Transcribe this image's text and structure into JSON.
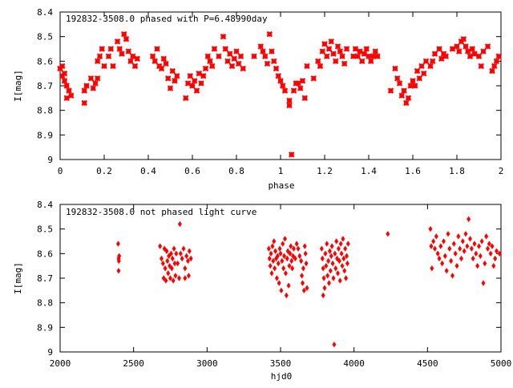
{
  "chart_data": [
    {
      "type": "scatter",
      "title": "192832-3508.0 phased with P=6.48990day",
      "xlabel": "phase",
      "ylabel": "I[mag]",
      "xlim": [
        0,
        2
      ],
      "ylim": [
        9.0,
        8.4
      ],
      "y_axis_inverted": true,
      "grid": false,
      "marker_color": "#ff0000",
      "xticks": [
        "0",
        "0.2",
        "0.4",
        "0.6",
        "0.8",
        "1",
        "1.2",
        "1.4",
        "1.6",
        "1.8",
        "2"
      ],
      "yticks": [
        "8.4",
        "8.5",
        "8.6",
        "8.7",
        "8.8",
        "8.9",
        "9"
      ],
      "points": [
        [
          0.0,
          8.63
        ],
        [
          0.01,
          8.66
        ],
        [
          0.01,
          8.62
        ],
        [
          0.02,
          8.65
        ],
        [
          0.02,
          8.68
        ],
        [
          0.03,
          8.7
        ],
        [
          0.03,
          8.75
        ],
        [
          0.04,
          8.72
        ],
        [
          0.05,
          8.74
        ],
        [
          0.11,
          8.77
        ],
        [
          0.11,
          8.72
        ],
        [
          0.12,
          8.7
        ],
        [
          0.14,
          8.67
        ],
        [
          0.15,
          8.71
        ],
        [
          0.16,
          8.69
        ],
        [
          0.17,
          8.67
        ],
        [
          0.17,
          8.6
        ],
        [
          0.18,
          8.58
        ],
        [
          0.19,
          8.55
        ],
        [
          0.2,
          8.62
        ],
        [
          0.22,
          8.58
        ],
        [
          0.23,
          8.55
        ],
        [
          0.24,
          8.62
        ],
        [
          0.26,
          8.52
        ],
        [
          0.27,
          8.55
        ],
        [
          0.28,
          8.57
        ],
        [
          0.29,
          8.49
        ],
        [
          0.3,
          8.51
        ],
        [
          0.31,
          8.56
        ],
        [
          0.32,
          8.6
        ],
        [
          0.33,
          8.58
        ],
        [
          0.34,
          8.62
        ],
        [
          0.35,
          8.59
        ],
        [
          0.42,
          8.58
        ],
        [
          0.43,
          8.6
        ],
        [
          0.44,
          8.55
        ],
        [
          0.45,
          8.62
        ],
        [
          0.46,
          8.63
        ],
        [
          0.47,
          8.59
        ],
        [
          0.48,
          8.61
        ],
        [
          0.49,
          8.67
        ],
        [
          0.5,
          8.71
        ],
        [
          0.51,
          8.64
        ],
        [
          0.52,
          8.68
        ],
        [
          0.53,
          8.66
        ],
        [
          0.57,
          8.75
        ],
        [
          0.58,
          8.69
        ],
        [
          0.59,
          8.66
        ],
        [
          0.6,
          8.7
        ],
        [
          0.61,
          8.68
        ],
        [
          0.62,
          8.72
        ],
        [
          0.63,
          8.65
        ],
        [
          0.64,
          8.69
        ],
        [
          0.65,
          8.66
        ],
        [
          0.66,
          8.63
        ],
        [
          0.67,
          8.58
        ],
        [
          0.68,
          8.6
        ],
        [
          0.69,
          8.62
        ],
        [
          0.7,
          8.55
        ],
        [
          0.72,
          8.58
        ],
        [
          0.74,
          8.5
        ],
        [
          0.75,
          8.55
        ],
        [
          0.76,
          8.6
        ],
        [
          0.77,
          8.57
        ],
        [
          0.78,
          8.62
        ],
        [
          0.79,
          8.59
        ],
        [
          0.8,
          8.56
        ],
        [
          0.81,
          8.61
        ],
        [
          0.82,
          8.58
        ],
        [
          0.83,
          8.63
        ],
        [
          0.88,
          8.58
        ],
        [
          0.91,
          8.54
        ],
        [
          0.92,
          8.56
        ],
        [
          0.93,
          8.58
        ],
        [
          0.94,
          8.61
        ],
        [
          0.95,
          8.49
        ],
        [
          0.96,
          8.56
        ],
        [
          0.97,
          8.6
        ],
        [
          0.98,
          8.63
        ],
        [
          0.99,
          8.66
        ],
        [
          1.0,
          8.68
        ],
        [
          1.01,
          8.7
        ],
        [
          1.02,
          8.72
        ],
        [
          1.04,
          8.76
        ],
        [
          1.04,
          8.78
        ],
        [
          1.05,
          8.98
        ],
        [
          1.06,
          8.72
        ],
        [
          1.07,
          8.69
        ],
        [
          1.08,
          8.69
        ],
        [
          1.09,
          8.71
        ],
        [
          1.1,
          8.68
        ],
        [
          1.11,
          8.75
        ],
        [
          1.12,
          8.62
        ],
        [
          1.15,
          8.67
        ],
        [
          1.17,
          8.6
        ],
        [
          1.18,
          8.62
        ],
        [
          1.19,
          8.56
        ],
        [
          1.2,
          8.53
        ],
        [
          1.21,
          8.58
        ],
        [
          1.22,
          8.55
        ],
        [
          1.23,
          8.52
        ],
        [
          1.24,
          8.57
        ],
        [
          1.25,
          8.6
        ],
        [
          1.26,
          8.54
        ],
        [
          1.27,
          8.56
        ],
        [
          1.28,
          8.58
        ],
        [
          1.29,
          8.61
        ],
        [
          1.3,
          8.55
        ],
        [
          1.33,
          8.58
        ],
        [
          1.34,
          8.55
        ],
        [
          1.35,
          8.58
        ],
        [
          1.36,
          8.56
        ],
        [
          1.37,
          8.6
        ],
        [
          1.38,
          8.57
        ],
        [
          1.39,
          8.55
        ],
        [
          1.4,
          8.58
        ],
        [
          1.41,
          8.6
        ],
        [
          1.42,
          8.58
        ],
        [
          1.43,
          8.56
        ],
        [
          1.44,
          8.58
        ],
        [
          1.5,
          8.72
        ],
        [
          1.52,
          8.63
        ],
        [
          1.53,
          8.67
        ],
        [
          1.54,
          8.69
        ],
        [
          1.55,
          8.74
        ],
        [
          1.56,
          8.72
        ],
        [
          1.57,
          8.77
        ],
        [
          1.58,
          8.75
        ],
        [
          1.59,
          8.7
        ],
        [
          1.6,
          8.68
        ],
        [
          1.61,
          8.7
        ],
        [
          1.62,
          8.64
        ],
        [
          1.63,
          8.67
        ],
        [
          1.64,
          8.62
        ],
        [
          1.65,
          8.65
        ],
        [
          1.66,
          8.6
        ],
        [
          1.68,
          8.62
        ],
        [
          1.69,
          8.6
        ],
        [
          1.7,
          8.57
        ],
        [
          1.72,
          8.55
        ],
        [
          1.73,
          8.59
        ],
        [
          1.74,
          8.57
        ],
        [
          1.75,
          8.58
        ],
        [
          1.78,
          8.55
        ],
        [
          1.8,
          8.54
        ],
        [
          1.81,
          8.56
        ],
        [
          1.82,
          8.52
        ],
        [
          1.83,
          8.51
        ],
        [
          1.84,
          8.54
        ],
        [
          1.85,
          8.56
        ],
        [
          1.86,
          8.58
        ],
        [
          1.87,
          8.55
        ],
        [
          1.88,
          8.57
        ],
        [
          1.9,
          8.58
        ],
        [
          1.91,
          8.62
        ],
        [
          1.92,
          8.56
        ],
        [
          1.94,
          8.54
        ],
        [
          1.96,
          8.64
        ],
        [
          1.97,
          8.62
        ],
        [
          1.98,
          8.6
        ],
        [
          1.99,
          8.58
        ]
      ]
    },
    {
      "type": "scatter",
      "title": "192832-3508.0 not phased light curve",
      "xlabel": "hjd0",
      "ylabel": "I[mag]",
      "xlim": [
        2000,
        5000
      ],
      "ylim": [
        9.0,
        8.4
      ],
      "y_axis_inverted": true,
      "grid": false,
      "marker_color": "#ff0000",
      "xticks": [
        "2000",
        "2500",
        "3000",
        "3500",
        "4000",
        "4500",
        "5000"
      ],
      "yticks": [
        "8.4",
        "8.5",
        "8.6",
        "8.7",
        "8.8",
        "8.9",
        "9"
      ],
      "points": [
        [
          2395,
          8.56
        ],
        [
          2398,
          8.62
        ],
        [
          2400,
          8.63
        ],
        [
          2402,
          8.61
        ],
        [
          2398,
          8.67
        ],
        [
          2680,
          8.57
        ],
        [
          2690,
          8.62
        ],
        [
          2700,
          8.64
        ],
        [
          2705,
          8.7
        ],
        [
          2710,
          8.58
        ],
        [
          2715,
          8.66
        ],
        [
          2720,
          8.71
        ],
        [
          2725,
          8.59
        ],
        [
          2730,
          8.63
        ],
        [
          2735,
          8.68
        ],
        [
          2740,
          8.61
        ],
        [
          2745,
          8.65
        ],
        [
          2750,
          8.7
        ],
        [
          2755,
          8.6
        ],
        [
          2760,
          8.66
        ],
        [
          2765,
          8.62
        ],
        [
          2770,
          8.71
        ],
        [
          2775,
          8.58
        ],
        [
          2780,
          8.64
        ],
        [
          2785,
          8.69
        ],
        [
          2790,
          8.6
        ],
        [
          2800,
          8.64
        ],
        [
          2810,
          8.7
        ],
        [
          2815,
          8.48
        ],
        [
          2820,
          8.6
        ],
        [
          2830,
          8.62
        ],
        [
          2840,
          8.58
        ],
        [
          2850,
          8.66
        ],
        [
          2860,
          8.61
        ],
        [
          2870,
          8.63
        ],
        [
          2880,
          8.59
        ],
        [
          2890,
          8.62
        ],
        [
          2875,
          8.69
        ],
        [
          2850,
          8.7
        ],
        [
          3420,
          8.58
        ],
        [
          3425,
          8.62
        ],
        [
          3430,
          8.65
        ],
        [
          3435,
          8.6
        ],
        [
          3440,
          8.68
        ],
        [
          3445,
          8.57
        ],
        [
          3450,
          8.63
        ],
        [
          3455,
          8.55
        ],
        [
          3460,
          8.66
        ],
        [
          3465,
          8.59
        ],
        [
          3470,
          8.62
        ],
        [
          3475,
          8.7
        ],
        [
          3480,
          8.61
        ],
        [
          3485,
          8.64
        ],
        [
          3490,
          8.72
        ],
        [
          3495,
          8.58
        ],
        [
          3500,
          8.6
        ],
        [
          3505,
          8.75
        ],
        [
          3510,
          8.63
        ],
        [
          3515,
          8.56
        ],
        [
          3520,
          8.66
        ],
        [
          3525,
          8.61
        ],
        [
          3530,
          8.54
        ],
        [
          3535,
          8.68
        ],
        [
          3540,
          8.77
        ],
        [
          3545,
          8.62
        ],
        [
          3550,
          8.59
        ],
        [
          3555,
          8.73
        ],
        [
          3560,
          8.65
        ],
        [
          3565,
          8.6
        ],
        [
          3570,
          8.57
        ],
        [
          3575,
          8.63
        ],
        [
          3580,
          8.66
        ],
        [
          3585,
          8.61
        ],
        [
          3590,
          8.58
        ],
        [
          3600,
          8.62
        ],
        [
          3610,
          8.56
        ],
        [
          3620,
          8.58
        ],
        [
          3630,
          8.61
        ],
        [
          3640,
          8.63
        ],
        [
          3645,
          8.69
        ],
        [
          3650,
          8.72
        ],
        [
          3655,
          8.66
        ],
        [
          3660,
          8.75
        ],
        [
          3665,
          8.57
        ],
        [
          3670,
          8.6
        ],
        [
          3675,
          8.64
        ],
        [
          3680,
          8.74
        ],
        [
          3780,
          8.58
        ],
        [
          3785,
          8.62
        ],
        [
          3790,
          8.66
        ],
        [
          3795,
          8.7
        ],
        [
          3800,
          8.74
        ],
        [
          3805,
          8.6
        ],
        [
          3810,
          8.65
        ],
        [
          3815,
          8.56
        ],
        [
          3820,
          8.69
        ],
        [
          3825,
          8.63
        ],
        [
          3830,
          8.72
        ],
        [
          3835,
          8.59
        ],
        [
          3840,
          8.67
        ],
        [
          3845,
          8.61
        ],
        [
          3850,
          8.57
        ],
        [
          3855,
          8.64
        ],
        [
          3860,
          8.7
        ],
        [
          3865,
          8.97
        ],
        [
          3870,
          8.6
        ],
        [
          3875,
          8.66
        ],
        [
          3880,
          8.55
        ],
        [
          3885,
          8.62
        ],
        [
          3890,
          8.68
        ],
        [
          3895,
          8.58
        ],
        [
          3900,
          8.63
        ],
        [
          3905,
          8.71
        ],
        [
          3910,
          8.56
        ],
        [
          3915,
          8.6
        ],
        [
          3920,
          8.65
        ],
        [
          3925,
          8.54
        ],
        [
          3930,
          8.62
        ],
        [
          3935,
          8.67
        ],
        [
          3940,
          8.58
        ],
        [
          3945,
          8.7
        ],
        [
          3950,
          8.61
        ],
        [
          3955,
          8.64
        ],
        [
          3960,
          8.56
        ],
        [
          3790,
          8.77
        ],
        [
          4230,
          8.52
        ],
        [
          4520,
          8.5
        ],
        [
          4525,
          8.57
        ],
        [
          4530,
          8.66
        ],
        [
          4540,
          8.55
        ],
        [
          4550,
          8.58
        ],
        [
          4560,
          8.53
        ],
        [
          4570,
          8.6
        ],
        [
          4580,
          8.62
        ],
        [
          4590,
          8.57
        ],
        [
          4600,
          8.64
        ],
        [
          4610,
          8.55
        ],
        [
          4620,
          8.61
        ],
        [
          4630,
          8.67
        ],
        [
          4640,
          8.52
        ],
        [
          4650,
          8.58
        ],
        [
          4660,
          8.63
        ],
        [
          4670,
          8.69
        ],
        [
          4680,
          8.56
        ],
        [
          4690,
          8.6
        ],
        [
          4700,
          8.65
        ],
        [
          4710,
          8.53
        ],
        [
          4720,
          8.58
        ],
        [
          4730,
          8.62
        ],
        [
          4740,
          8.55
        ],
        [
          4750,
          8.59
        ],
        [
          4760,
          8.52
        ],
        [
          4770,
          8.57
        ],
        [
          4780,
          8.46
        ],
        [
          4790,
          8.54
        ],
        [
          4800,
          8.58
        ],
        [
          4810,
          8.62
        ],
        [
          4820,
          8.56
        ],
        [
          4830,
          8.6
        ],
        [
          4840,
          8.65
        ],
        [
          4850,
          8.57
        ],
        [
          4860,
          8.61
        ],
        [
          4870,
          8.55
        ],
        [
          4880,
          8.72
        ],
        [
          4890,
          8.64
        ],
        [
          4900,
          8.53
        ],
        [
          4910,
          8.58
        ],
        [
          4920,
          8.56
        ],
        [
          4930,
          8.6
        ],
        [
          4940,
          8.57
        ],
        [
          4950,
          8.65
        ],
        [
          4960,
          8.62
        ],
        [
          4970,
          8.59
        ],
        [
          4990,
          8.6
        ]
      ]
    }
  ]
}
